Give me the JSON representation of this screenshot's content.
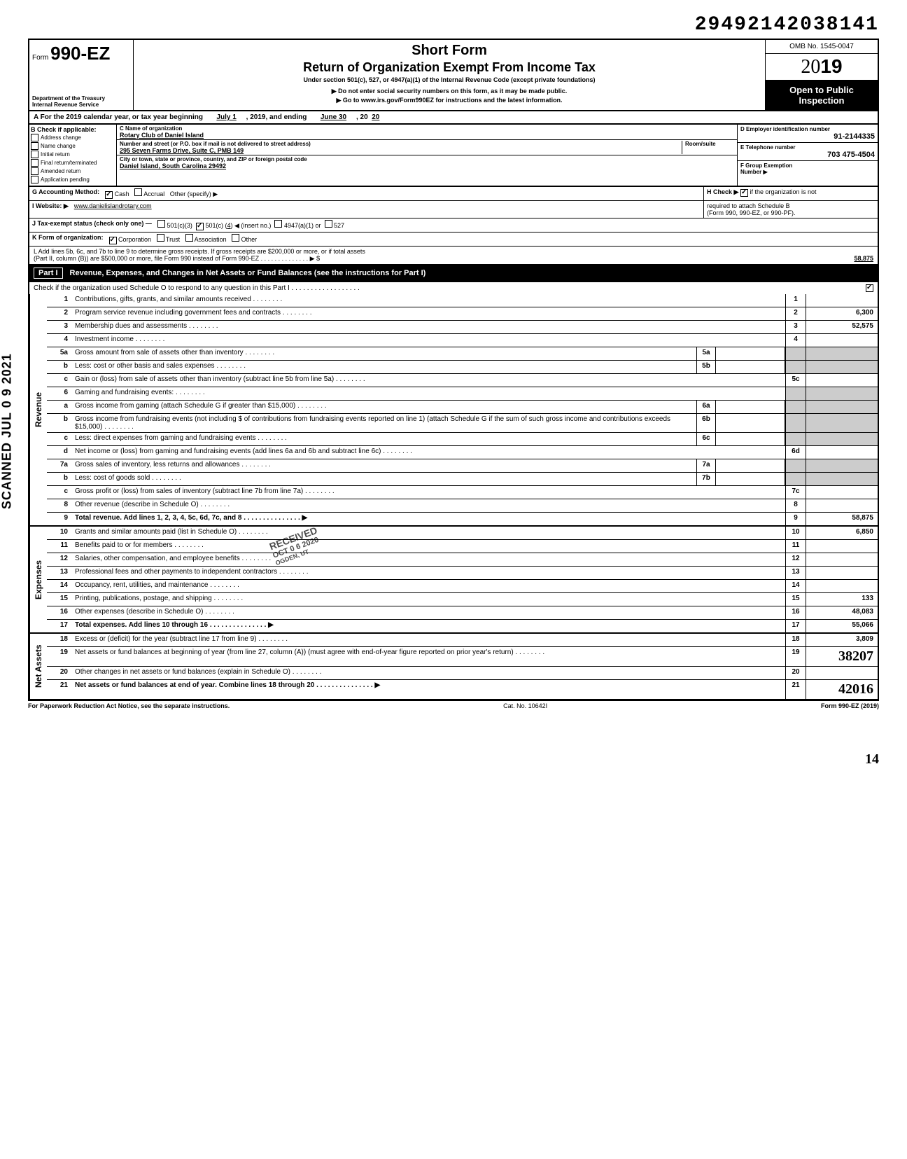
{
  "dln": "29492142038141",
  "header": {
    "form_prefix": "Form",
    "form_number": "990-EZ",
    "dept1": "Department of the Treasury",
    "dept2": "Internal Revenue Service",
    "short_form": "Short Form",
    "title": "Return of Organization Exempt From Income Tax",
    "subtitle": "Under section 501(c), 527, or 4947(a)(1) of the Internal Revenue Code (except private foundations)",
    "note1": "Do not enter social security numbers on this form, as it may be made public.",
    "note2": "Go to www.irs.gov/Form990EZ for instructions and the latest information.",
    "omb": "OMB No. 1545-0047",
    "year_prefix": "20",
    "year_suffix": "19",
    "open1": "Open to Public",
    "open2": "Inspection"
  },
  "row_a": {
    "prefix": "A  For the 2019 calendar year, or tax year beginning",
    "begin": "July 1",
    "mid": ", 2019, and ending",
    "end": "June 30",
    "suffix": ", 20",
    "end_yr": "20"
  },
  "col_b": {
    "hdr": "B  Check if applicable:",
    "items": [
      "Address change",
      "Name change",
      "Initial return",
      "Final return/terminated",
      "Amended return",
      "Application pending"
    ]
  },
  "block_c": {
    "c_lbl": "C  Name of organization",
    "c_val": "Rotary Club of Daniel Island",
    "addr_lbl": "Number and street (or P.O. box if mail is not delivered to street address)",
    "room_lbl": "Room/suite",
    "addr_val": "295 Seven Farms Drive, Suite C, PMB 149",
    "city_lbl": "City or town, state or province, country, and ZIP or foreign postal code",
    "city_val": "Daniel Island, South Carolina 29492"
  },
  "block_right": {
    "d_lbl": "D Employer identification number",
    "d_val": "91-2144335",
    "e_lbl": "E  Telephone number",
    "e_val": "703 475-4504",
    "f_lbl": "F  Group Exemption",
    "f_lbl2": "Number ▶"
  },
  "row_g": {
    "g": "G  Accounting Method:",
    "cash": "Cash",
    "accrual": "Accrual",
    "other": "Other (specify) ▶",
    "h": "H  Check ▶",
    "h2": "if the organization is not"
  },
  "row_i": {
    "i": "I   Website: ▶",
    "i_val": "www.danielislandrotary.com",
    "h3": "required to attach Schedule B",
    "h4": "(Form 990, 990-EZ, or 990-PF)."
  },
  "row_j": {
    "j": "J  Tax-exempt status (check only one) —",
    "o1": "501(c)(3)",
    "o2": "501(c) (",
    "o2n": "4",
    "o2s": ") ◀ (insert no.)",
    "o3": "4947(a)(1) or",
    "o4": "527"
  },
  "row_k": {
    "k": "K  Form of organization:",
    "corp": "Corporation",
    "trust": "Trust",
    "assoc": "Association",
    "other": "Other"
  },
  "row_l": {
    "l1": "L  Add lines 5b, 6c, and 7b to line 9 to determine gross receipts. If gross receipts are $200,000 or more, or if total assets",
    "l2": "(Part II, column (B)) are $500,000 or more, file Form 990 instead of Form 990-EZ",
    "arrow": "▶  $",
    "val": "58,875"
  },
  "part1": {
    "label": "Part I",
    "title": "Revenue, Expenses, and Changes in Net Assets or Fund Balances (see the instructions for Part I)",
    "sub": "Check if the organization used Schedule O to respond to any question in this Part I",
    "checked": "✓"
  },
  "sections": [
    {
      "side": "Revenue",
      "rows": [
        {
          "ln": "1",
          "desc": "Contributions, gifts, grants, and similar amounts received",
          "rnum": "1",
          "rval": ""
        },
        {
          "ln": "2",
          "desc": "Program service revenue including government fees and contracts",
          "rnum": "2",
          "rval": "6,300"
        },
        {
          "ln": "3",
          "desc": "Membership dues and assessments",
          "rnum": "3",
          "rval": "52,575"
        },
        {
          "ln": "4",
          "desc": "Investment income",
          "rnum": "4",
          "rval": ""
        },
        {
          "ln": "5a",
          "desc": "Gross amount from sale of assets other than inventory",
          "mid": "5a",
          "rshade": true
        },
        {
          "ln": "b",
          "desc": "Less: cost or other basis and sales expenses",
          "mid": "5b",
          "rshade": true
        },
        {
          "ln": "c",
          "desc": "Gain or (loss) from sale of assets other than inventory (subtract line 5b from line 5a)",
          "rnum": "5c",
          "rval": ""
        },
        {
          "ln": "6",
          "desc": "Gaming and fundraising events:",
          "rshade": true,
          "noborder": true
        },
        {
          "ln": "a",
          "desc": "Gross income from gaming (attach Schedule G if greater than $15,000)",
          "mid": "6a",
          "rshade": true
        },
        {
          "ln": "b",
          "desc": "Gross income from fundraising events (not including  $                               of contributions from fundraising events reported on line 1) (attach Schedule G if the sum of such gross income and contributions exceeds $15,000)",
          "mid": "6b",
          "rshade": true
        },
        {
          "ln": "c",
          "desc": "Less: direct expenses from gaming and fundraising events",
          "mid": "6c",
          "rshade": true
        },
        {
          "ln": "d",
          "desc": "Net income or (loss) from gaming and fundraising events (add lines 6a and 6b and subtract line 6c)",
          "rnum": "6d",
          "rval": ""
        },
        {
          "ln": "7a",
          "desc": "Gross sales of inventory, less returns and allowances",
          "mid": "7a",
          "rshade": true
        },
        {
          "ln": "b",
          "desc": "Less: cost of goods sold",
          "mid": "7b",
          "rshade": true
        },
        {
          "ln": "c",
          "desc": "Gross profit or (loss) from sales of inventory (subtract line 7b from line 7a)",
          "rnum": "7c",
          "rval": ""
        },
        {
          "ln": "8",
          "desc": "Other revenue (describe in Schedule O)",
          "rnum": "8",
          "rval": ""
        },
        {
          "ln": "9",
          "desc": "Total revenue. Add lines 1, 2, 3, 4, 5c, 6d, 7c, and 8",
          "rnum": "9",
          "rval": "58,875",
          "bold": true,
          "arrow": true
        }
      ]
    },
    {
      "side": "Expenses",
      "rows": [
        {
          "ln": "10",
          "desc": "Grants and similar amounts paid (list in Schedule O)",
          "rnum": "10",
          "rval": "6,850"
        },
        {
          "ln": "11",
          "desc": "Benefits paid to or for members",
          "rnum": "11",
          "rval": ""
        },
        {
          "ln": "12",
          "desc": "Salaries, other compensation, and employee benefits",
          "rnum": "12",
          "rval": ""
        },
        {
          "ln": "13",
          "desc": "Professional fees and other payments to independent contractors",
          "rnum": "13",
          "rval": ""
        },
        {
          "ln": "14",
          "desc": "Occupancy, rent, utilities, and maintenance",
          "rnum": "14",
          "rval": ""
        },
        {
          "ln": "15",
          "desc": "Printing, publications, postage, and shipping",
          "rnum": "15",
          "rval": "133"
        },
        {
          "ln": "16",
          "desc": "Other expenses (describe in Schedule O)",
          "rnum": "16",
          "rval": "48,083"
        },
        {
          "ln": "17",
          "desc": "Total expenses. Add lines 10 through 16",
          "rnum": "17",
          "rval": "55,066",
          "bold": true,
          "arrow": true
        }
      ]
    },
    {
      "side": "Net Assets",
      "rows": [
        {
          "ln": "18",
          "desc": "Excess or (deficit) for the year (subtract line 17 from line 9)",
          "rnum": "18",
          "rval": "3,809"
        },
        {
          "ln": "19",
          "desc": "Net assets or fund balances at beginning of year (from line 27, column (A)) (must agree with end-of-year figure reported on prior year's return)",
          "rnum": "19",
          "rval": "38207",
          "hand": true
        },
        {
          "ln": "20",
          "desc": "Other changes in net assets or fund balances (explain in Schedule O)",
          "rnum": "20",
          "rval": ""
        },
        {
          "ln": "21",
          "desc": "Net assets or fund balances at end of year. Combine lines 18 through 20",
          "rnum": "21",
          "rval": "42016",
          "bold": true,
          "arrow": true,
          "hand": true
        }
      ]
    }
  ],
  "footer": {
    "left": "For Paperwork Reduction Act Notice, see the separate instructions.",
    "mid": "Cat. No. 10642I",
    "right": "Form 990-EZ (2019)"
  },
  "scanned": "SCANNED JUL 0 9 2021",
  "stamp": {
    "l1": "RECEIVED",
    "l2": "OCT 0 6 2020",
    "l3": "OGDEN, UT"
  },
  "page_hand": "14"
}
